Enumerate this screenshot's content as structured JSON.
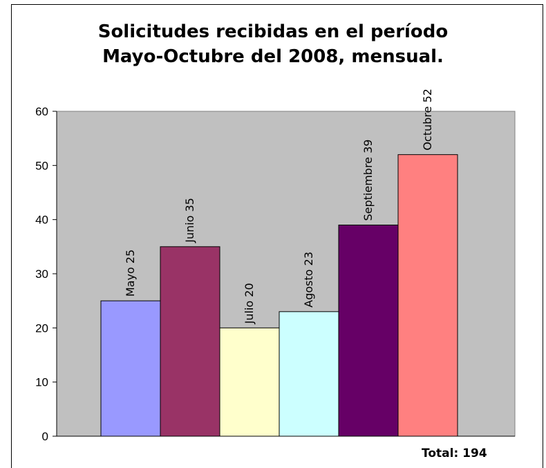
{
  "chart_data": {
    "type": "bar",
    "title": [
      "Solicitudes recibidas en el período",
      "Mayo-Octubre del 2008, mensual."
    ],
    "categories": [
      "Mayo",
      "Junio",
      "Julio",
      "Agosto",
      "Septiembre",
      "Octubre"
    ],
    "values": [
      25,
      35,
      20,
      23,
      39,
      52
    ],
    "bar_labels": [
      "Mayo 25",
      "Junio 35",
      "Julio 20",
      "Agosto 23",
      "Septiembre 39",
      "Octubre 52"
    ],
    "colors": [
      "#9999ff",
      "#993366",
      "#ffffcc",
      "#ccffff",
      "#660066",
      "#ff8080"
    ],
    "plot_background": "#c0c0c0",
    "ylim": [
      0,
      60
    ],
    "yticks": [
      0,
      10,
      20,
      30,
      40,
      50,
      60
    ],
    "xlabel": "",
    "ylabel": "",
    "grid": false,
    "legend": "none",
    "footer": "Total: 194"
  }
}
